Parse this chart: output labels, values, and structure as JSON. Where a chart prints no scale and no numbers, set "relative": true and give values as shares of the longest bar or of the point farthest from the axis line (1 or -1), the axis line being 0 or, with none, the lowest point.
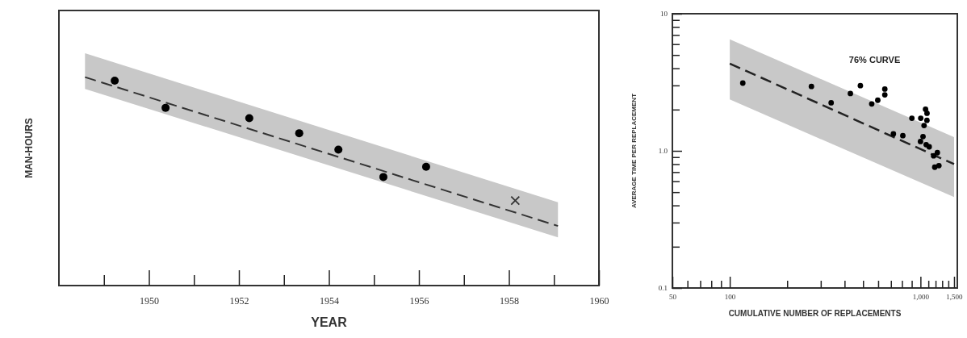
{
  "chart_data": [
    {
      "type": "scatter",
      "xlabel": "YEAR",
      "ylabel": "MAN-HOURS",
      "relative": true,
      "xlim": [
        1948,
        1960
      ],
      "xticks": [
        {
          "value": 1949,
          "label": null
        },
        1950,
        {
          "value": 1951,
          "label": null
        },
        1952,
        {
          "value": 1953,
          "label": null
        },
        1954,
        {
          "value": 1955,
          "label": null
        },
        1956,
        {
          "value": 1957,
          "label": null
        },
        1958,
        {
          "value": 1959,
          "label": null
        },
        1960
      ],
      "series": [
        {
          "type": "line",
          "color": "#333333",
          "line_style": "dashed",
          "marker": "none",
          "x": [
            1948.58,
            1959.09
          ],
          "values": [
            1.0,
            0.286
          ],
          "lower": [
            0.944,
            0.231
          ],
          "upper": [
            1.115,
            0.4
          ]
        },
        {
          "color": "#000000",
          "marker": "circle",
          "x": [
            1949.24,
            1950.37,
            1952.23,
            1953.34,
            1954.21,
            1955.21,
            1956.16
          ],
          "values": [
            0.983,
            0.853,
            0.803,
            0.731,
            0.652,
            0.521,
            0.57
          ]
        },
        {
          "color": "#333333",
          "marker": "cross",
          "x": [
            1958.14
          ],
          "values": [
            0.408
          ]
        }
      ]
    },
    {
      "type": "scatter",
      "xlabel": "CUMULATIVE NUMBER OF REPLACEMENTS",
      "ylabel": "AVERAGE TIME PER REPLACEMENT",
      "annotations": [
        "76% CURVE"
      ],
      "log": "xy",
      "xlim": [
        50,
        1560
      ],
      "ylim": [
        0.1,
        10
      ],
      "xticks": [
        50,
        {
          "value": 60,
          "label": null
        },
        {
          "value": 70,
          "label": null
        },
        {
          "value": 80,
          "label": null
        },
        {
          "value": 90,
          "label": null
        },
        100,
        {
          "value": 200,
          "label": null
        },
        {
          "value": 300,
          "label": null
        },
        {
          "value": 400,
          "label": null
        },
        {
          "value": 500,
          "label": null
        },
        {
          "value": 600,
          "label": null
        },
        {
          "value": 700,
          "label": null
        },
        {
          "value": 800,
          "label": null
        },
        {
          "value": 900,
          "label": null
        },
        {
          "value": 1000,
          "label": "1,000"
        },
        {
          "value": 1100,
          "label": null
        },
        {
          "value": 1200,
          "label": null
        },
        {
          "value": 1300,
          "label": null
        },
        {
          "value": 1400,
          "label": null
        },
        {
          "value": 1500,
          "label": "1,500"
        }
      ],
      "yticks": [
        0.1,
        {
          "value": 0.2,
          "label": null
        },
        {
          "value": 0.3,
          "label": null
        },
        {
          "value": 0.4,
          "label": null
        },
        {
          "value": 0.5,
          "label": null
        },
        {
          "value": 0.6,
          "label": null
        },
        {
          "value": 0.7,
          "label": null
        },
        {
          "value": 0.8,
          "label": null
        },
        {
          "value": 0.9,
          "label": null
        },
        {
          "value": 1,
          "label": "1.0"
        },
        {
          "value": 2,
          "label": null
        },
        {
          "value": 3,
          "label": null
        },
        {
          "value": 4,
          "label": null
        },
        {
          "value": 5,
          "label": null
        },
        {
          "value": 6,
          "label": null
        },
        {
          "value": 7,
          "label": null
        },
        {
          "value": 8,
          "label": null
        },
        {
          "value": 9,
          "label": null
        },
        10
      ],
      "series": [
        {
          "type": "line",
          "color": "#222222",
          "line_style": "dashed",
          "marker": "none",
          "x": [
            100,
            1500
          ],
          "values": [
            4.33,
            0.8
          ],
          "lower": [
            2.37,
            0.46
          ],
          "upper": [
            6.5,
            1.26
          ]
        },
        {
          "color": "#000000",
          "marker": "circle",
          "x": [
            117,
            268,
            340,
            429,
            484,
            555,
            597,
            650,
            650,
            721,
            808,
            901,
            1003,
            1000,
            1031,
            1044,
            1063,
            1082,
            1081,
            1071,
            1111,
            1172,
            1226,
            1188,
            1249
          ],
          "values": [
            3.12,
            2.95,
            2.24,
            2.62,
            2.99,
            2.2,
            2.34,
            2.82,
            2.56,
            1.33,
            1.29,
            1.73,
            1.73,
            1.17,
            1.27,
            1.53,
            2.01,
            1.88,
            1.67,
            1.11,
            1.07,
            0.92,
            0.97,
            0.76,
            0.78
          ]
        }
      ]
    }
  ]
}
